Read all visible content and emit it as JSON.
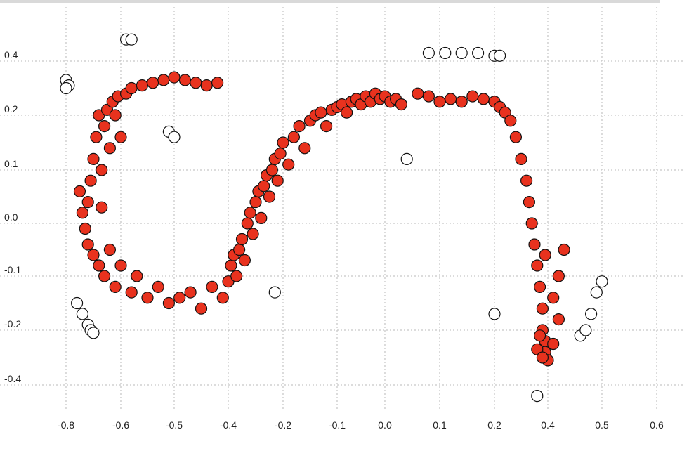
{
  "chart_data": {
    "type": "scatter",
    "title": "",
    "xlabel": "",
    "ylabel": "",
    "grid": true,
    "x_ticks": [
      {
        "v": -0.8,
        "label": "-0.8"
      },
      {
        "v": -0.6,
        "label": "-0.6"
      },
      {
        "v": -0.5,
        "label": "-0.5"
      },
      {
        "v": -0.4,
        "label": "-0.4"
      },
      {
        "v": -0.2,
        "label": "-0.2"
      },
      {
        "v": -0.1,
        "label": "-0.1"
      },
      {
        "v": 0.0,
        "label": "0.0"
      },
      {
        "v": 0.1,
        "label": "0.1"
      },
      {
        "v": 0.2,
        "label": "0.2"
      },
      {
        "v": 0.4,
        "label": "0.4"
      },
      {
        "v": 0.5,
        "label": "0.5"
      },
      {
        "v": 0.6,
        "label": "0.6"
      }
    ],
    "y_ticks": [
      {
        "v": 0.4,
        "label": "0.4"
      },
      {
        "v": 0.2,
        "label": "0.2"
      },
      {
        "v": 0.1,
        "label": "0.1"
      },
      {
        "v": 0.0,
        "label": "0.0"
      },
      {
        "v": -0.1,
        "label": "-0.1"
      },
      {
        "v": -0.2,
        "label": "-0.2"
      },
      {
        "v": -0.4,
        "label": "-0.4"
      }
    ],
    "colors": {
      "main": "#e8321e",
      "outlier": "#ffffff",
      "stroke": "#111111",
      "grid": "#c8c8c8"
    },
    "series": [
      {
        "marker": "filled-red",
        "points": [
          [
            -0.75,
            0.06
          ],
          [
            -0.74,
            0.02
          ],
          [
            -0.73,
            -0.01
          ],
          [
            -0.72,
            -0.04
          ],
          [
            -0.72,
            0.04
          ],
          [
            -0.71,
            0.08
          ],
          [
            -0.7,
            0.12
          ],
          [
            -0.7,
            -0.06
          ],
          [
            -0.69,
            0.16
          ],
          [
            -0.68,
            0.2
          ],
          [
            -0.68,
            -0.08
          ],
          [
            -0.67,
            0.03
          ],
          [
            -0.67,
            0.1
          ],
          [
            -0.66,
            -0.1
          ],
          [
            -0.66,
            0.18
          ],
          [
            -0.65,
            0.22
          ],
          [
            -0.64,
            -0.05
          ],
          [
            -0.64,
            0.14
          ],
          [
            -0.63,
            0.25
          ],
          [
            -0.62,
            -0.12
          ],
          [
            -0.62,
            0.2
          ],
          [
            -0.61,
            0.27
          ],
          [
            -0.6,
            -0.08
          ],
          [
            -0.6,
            0.16
          ],
          [
            -0.59,
            0.28
          ],
          [
            -0.58,
            -0.13
          ],
          [
            -0.58,
            0.3
          ],
          [
            -0.57,
            -0.1
          ],
          [
            -0.56,
            0.31
          ],
          [
            -0.55,
            -0.14
          ],
          [
            -0.54,
            0.32
          ],
          [
            -0.53,
            -0.12
          ],
          [
            -0.52,
            0.33
          ],
          [
            -0.51,
            -0.15
          ],
          [
            -0.5,
            0.34
          ],
          [
            -0.49,
            -0.14
          ],
          [
            -0.48,
            0.33
          ],
          [
            -0.47,
            -0.13
          ],
          [
            -0.46,
            0.32
          ],
          [
            -0.45,
            -0.16
          ],
          [
            -0.44,
            0.31
          ],
          [
            -0.43,
            -0.12
          ],
          [
            -0.42,
            0.32
          ],
          [
            -0.41,
            -0.14
          ],
          [
            -0.4,
            -0.11
          ],
          [
            -0.39,
            -0.08
          ],
          [
            -0.38,
            -0.06
          ],
          [
            -0.37,
            -0.1
          ],
          [
            -0.36,
            -0.05
          ],
          [
            -0.35,
            -0.03
          ],
          [
            -0.34,
            -0.07
          ],
          [
            -0.33,
            0.0
          ],
          [
            -0.32,
            0.02
          ],
          [
            -0.31,
            -0.02
          ],
          [
            -0.3,
            0.04
          ],
          [
            -0.29,
            0.06
          ],
          [
            -0.28,
            0.01
          ],
          [
            -0.27,
            0.07
          ],
          [
            -0.26,
            0.09
          ],
          [
            -0.25,
            0.05
          ],
          [
            -0.24,
            0.1
          ],
          [
            -0.23,
            0.12
          ],
          [
            -0.22,
            0.08
          ],
          [
            -0.21,
            0.13
          ],
          [
            -0.2,
            0.15
          ],
          [
            -0.19,
            0.11
          ],
          [
            -0.18,
            0.16
          ],
          [
            -0.17,
            0.18
          ],
          [
            -0.16,
            0.14
          ],
          [
            -0.15,
            0.19
          ],
          [
            -0.14,
            0.2
          ],
          [
            -0.13,
            0.21
          ],
          [
            -0.12,
            0.18
          ],
          [
            -0.11,
            0.22
          ],
          [
            -0.1,
            0.23
          ],
          [
            -0.09,
            0.24
          ],
          [
            -0.08,
            0.21
          ],
          [
            -0.07,
            0.25
          ],
          [
            -0.06,
            0.26
          ],
          [
            -0.05,
            0.24
          ],
          [
            -0.04,
            0.27
          ],
          [
            -0.03,
            0.25
          ],
          [
            -0.02,
            0.28
          ],
          [
            -0.01,
            0.26
          ],
          [
            0.0,
            0.27
          ],
          [
            0.01,
            0.25
          ],
          [
            0.02,
            0.26
          ],
          [
            0.03,
            0.24
          ],
          [
            0.06,
            0.28
          ],
          [
            0.08,
            0.27
          ],
          [
            0.1,
            0.25
          ],
          [
            0.12,
            0.26
          ],
          [
            0.14,
            0.25
          ],
          [
            0.16,
            0.27
          ],
          [
            0.18,
            0.26
          ],
          [
            0.2,
            0.25
          ],
          [
            0.22,
            0.23
          ],
          [
            0.24,
            0.21
          ],
          [
            0.26,
            0.19
          ],
          [
            0.28,
            0.16
          ],
          [
            0.3,
            0.12
          ],
          [
            0.32,
            0.08
          ],
          [
            0.33,
            0.04
          ],
          [
            0.34,
            0.0
          ],
          [
            0.35,
            -0.04
          ],
          [
            0.36,
            -0.08
          ],
          [
            0.37,
            -0.12
          ],
          [
            0.38,
            -0.16
          ],
          [
            0.38,
            -0.2
          ],
          [
            0.39,
            -0.24
          ],
          [
            0.39,
            -0.28
          ],
          [
            0.4,
            -0.31
          ],
          [
            0.41,
            -0.25
          ],
          [
            0.42,
            -0.18
          ],
          [
            0.42,
            -0.1
          ],
          [
            0.43,
            -0.05
          ],
          [
            0.41,
            -0.14
          ],
          [
            0.39,
            -0.06
          ],
          [
            0.37,
            -0.22
          ],
          [
            0.36,
            -0.27
          ],
          [
            0.38,
            -0.3
          ]
        ]
      },
      {
        "marker": "hollow",
        "points": [
          [
            -0.8,
            0.33
          ],
          [
            -0.79,
            0.31
          ],
          [
            -0.8,
            0.3
          ],
          [
            -0.59,
            0.48
          ],
          [
            -0.58,
            0.48
          ],
          [
            -0.51,
            0.17
          ],
          [
            -0.5,
            0.16
          ],
          [
            -0.76,
            -0.15
          ],
          [
            -0.74,
            -0.17
          ],
          [
            -0.72,
            -0.19
          ],
          [
            -0.71,
            -0.2
          ],
          [
            -0.7,
            -0.21
          ],
          [
            -0.23,
            -0.13
          ],
          [
            0.04,
            0.12
          ],
          [
            0.08,
            0.43
          ],
          [
            0.11,
            0.43
          ],
          [
            0.14,
            0.43
          ],
          [
            0.17,
            0.43
          ],
          [
            0.2,
            0.42
          ],
          [
            0.22,
            0.42
          ],
          [
            0.2,
            -0.17
          ],
          [
            0.36,
            -0.44
          ],
          [
            0.46,
            -0.22
          ],
          [
            0.47,
            -0.2
          ],
          [
            0.48,
            -0.17
          ],
          [
            0.49,
            -0.13
          ],
          [
            0.5,
            -0.11
          ]
        ]
      }
    ]
  }
}
